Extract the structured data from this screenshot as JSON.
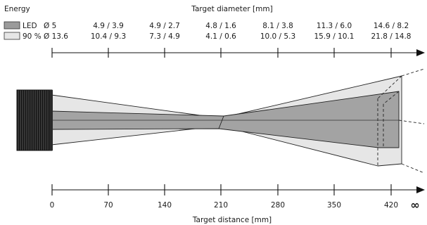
{
  "header": {
    "energy_label": "Energy",
    "diameter_title": "Target diameter [mm]"
  },
  "legend": [
    {
      "label": "LED",
      "swatch_color": "#9b9b9b",
      "first_value": "Ø 5"
    },
    {
      "label": "90 %",
      "swatch_color": "#e6e6e6",
      "first_value": "Ø 13.6"
    }
  ],
  "diameter_ticks": [
    {
      "led": "4.9 / 3.9",
      "energy90": "10.4 / 9.3"
    },
    {
      "led": "4.9 / 2.7",
      "energy90": "7.3 / 4.9"
    },
    {
      "led": "4.8 / 1.6",
      "energy90": "4.1 / 0.6"
    },
    {
      "led": "8.1 / 3.8",
      "energy90": "10.0 / 5.3"
    },
    {
      "led": "11.3 / 6.0",
      "energy90": "15.9 / 10.1"
    },
    {
      "led": "14.6 / 8.2",
      "energy90": "21.8 / 14.8"
    }
  ],
  "distance_axis": {
    "title": "Target distance [mm]",
    "ticks": [
      "0",
      "70",
      "140",
      "210",
      "280",
      "350",
      "420"
    ],
    "infinity": "∞"
  },
  "colors": {
    "beam_90": "#e6e6e6",
    "beam_led": "#a3a3a3",
    "outline": "#222222",
    "sensor_dark": "#2a2a2a"
  }
}
